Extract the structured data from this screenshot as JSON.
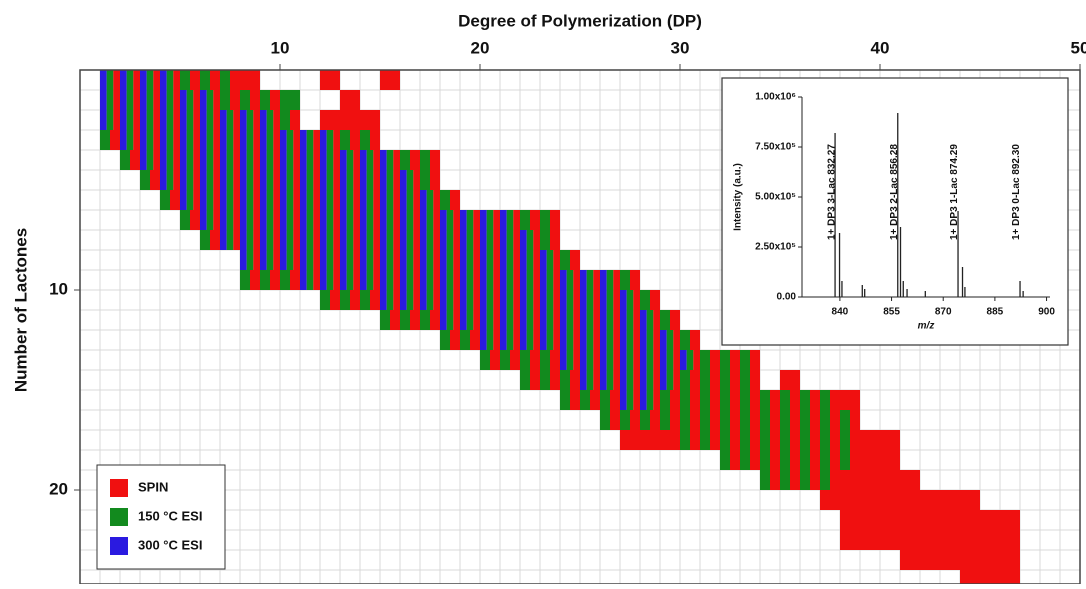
{
  "chart_data": [
    {
      "type": "heatmap",
      "title": "Degree of Polymerization (DP)",
      "ylabel": "Number of Lactones",
      "xlim": [
        0,
        50
      ],
      "ylim": [
        -1,
        24.7
      ],
      "xticks": [
        10,
        20,
        30,
        40,
        50
      ],
      "yticks": [
        10,
        20
      ],
      "grid": true,
      "legend": "lower left",
      "series": [
        {
          "name": "300 °C ESI",
          "color": "#2a1ae0",
          "rows": [
            [
              0,
              1,
              4
            ],
            [
              1,
              1,
              6
            ],
            [
              2,
              1,
              9
            ],
            [
              3,
              2,
              12
            ],
            [
              4,
              3,
              15
            ],
            [
              5,
              4,
              16
            ],
            [
              6,
              5,
              17
            ],
            [
              7,
              6,
              21
            ],
            [
              8,
              7,
              22
            ],
            [
              9,
              8,
              23
            ],
            [
              10,
              11,
              26
            ],
            [
              11,
              15,
              27
            ],
            [
              12,
              18,
              28
            ],
            [
              13,
              20,
              29
            ],
            [
              14,
              24,
              30
            ],
            [
              15,
              25,
              29
            ],
            [
              16,
              27,
              28
            ]
          ]
        },
        {
          "name": "150 °C ESI",
          "color": "#128a1e",
          "rows": [
            [
              0,
              1,
              7
            ],
            [
              1,
              1,
              10
            ],
            [
              2,
              1,
              10
            ],
            [
              3,
              1,
              14
            ],
            [
              4,
              2,
              17
            ],
            [
              5,
              3,
              17
            ],
            [
              6,
              4,
              18
            ],
            [
              7,
              5,
              23
            ],
            [
              8,
              6,
              23
            ],
            [
              9,
              8,
              24
            ],
            [
              10,
              8,
              27
            ],
            [
              11,
              12,
              28
            ],
            [
              12,
              15,
              29
            ],
            [
              13,
              18,
              30
            ],
            [
              14,
              20,
              33
            ],
            [
              15,
              22,
              33
            ],
            [
              16,
              24,
              37
            ],
            [
              17,
              26,
              38
            ],
            [
              18,
              30,
              38
            ],
            [
              19,
              32,
              38
            ],
            [
              20,
              34,
              37
            ]
          ]
        },
        {
          "name": "SPIN",
          "color": "#f01010",
          "rows": [
            [
              0,
              1,
              8
            ],
            [
              0,
              12,
              12
            ],
            [
              0,
              15,
              15
            ],
            [
              1,
              1,
              9
            ],
            [
              1,
              13,
              13
            ],
            [
              2,
              1,
              10
            ],
            [
              2,
              12,
              14
            ],
            [
              3,
              1,
              14
            ],
            [
              4,
              2,
              17
            ],
            [
              5,
              3,
              17
            ],
            [
              6,
              4,
              18
            ],
            [
              7,
              5,
              23
            ],
            [
              8,
              6,
              23
            ],
            [
              9,
              8,
              24
            ],
            [
              10,
              8,
              27
            ],
            [
              11,
              12,
              28
            ],
            [
              12,
              15,
              29
            ],
            [
              13,
              18,
              30
            ],
            [
              14,
              20,
              33
            ],
            [
              15,
              22,
              33
            ],
            [
              15,
              35,
              35
            ],
            [
              16,
              24,
              38
            ],
            [
              17,
              26,
              38
            ],
            [
              18,
              27,
              40
            ],
            [
              19,
              32,
              40
            ],
            [
              20,
              34,
              41
            ],
            [
              21,
              37,
              44
            ],
            [
              22,
              38,
              46
            ],
            [
              23,
              38,
              46
            ],
            [
              24,
              41,
              46
            ],
            [
              25,
              44,
              46
            ]
          ]
        }
      ]
    },
    {
      "type": "spectrum",
      "xlabel": "m/z",
      "ylabel": "Intensity (a.u.)",
      "color": "#222222",
      "xlim": [
        829,
        901
      ],
      "ylim": [
        0,
        1000000
      ],
      "xticks": [
        840,
        855,
        870,
        885,
        900
      ],
      "yticks": [
        {
          "value": 0,
          "label": "0.00"
        },
        {
          "value": 250000,
          "label": "2.50x10⁵"
        },
        {
          "value": 500000,
          "label": "5.00x10⁵"
        },
        {
          "value": 750000,
          "label": "7.50x10⁵"
        },
        {
          "value": 1000000,
          "label": "1.00x10⁶"
        }
      ],
      "x": [
        838.6,
        839.9,
        840.6,
        846.5,
        847.2,
        856.8,
        857.6,
        858.4,
        859.5,
        864.8,
        874.3,
        875.6,
        876.3,
        892.3,
        893.2
      ],
      "values": [
        820000,
        320000,
        80000,
        60000,
        40000,
        920000,
        350000,
        80000,
        40000,
        30000,
        430000,
        150000,
        50000,
        80000,
        30000
      ],
      "annotations": [
        {
          "text": "1+ DP3 3-Lac 832.27",
          "x": 837.6
        },
        {
          "text": "1+ DP3 2-Lac 856.28",
          "x": 855.8
        },
        {
          "text": "1+ DP3 1-Lac 874.29",
          "x": 873.3
        },
        {
          "text": "1+ DP3 0-Lac 892.30",
          "x": 891.3
        }
      ]
    }
  ]
}
